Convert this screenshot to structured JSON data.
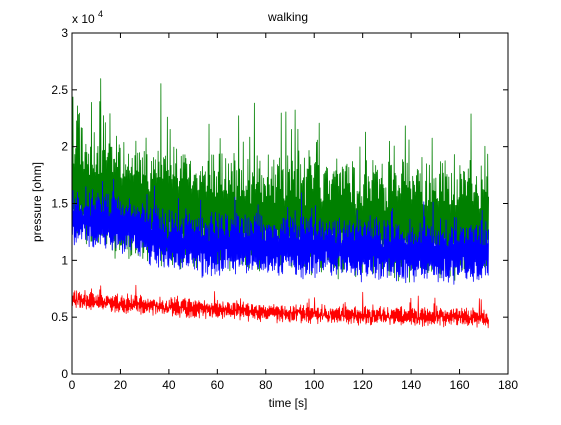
{
  "chart_data": {
    "type": "line",
    "title": "walking",
    "xlabel": "time [s]",
    "ylabel": "pressure [ohm]",
    "y_exponent_label": "x 10",
    "y_exponent_power": "4",
    "xlim": [
      0,
      180
    ],
    "ylim": [
      0,
      3
    ],
    "y_scale_factor": 10000,
    "grid": false,
    "legend": "none",
    "x_ticks": [
      "0",
      "20",
      "40",
      "60",
      "80",
      "100",
      "120",
      "140",
      "160",
      "180"
    ],
    "y_ticks": [
      "0",
      "0.5",
      "1",
      "1.5",
      "2",
      "2.5",
      "3"
    ],
    "x_end": 172,
    "series": [
      {
        "color": "#008000",
        "x": [
          0,
          10,
          20,
          30,
          40,
          50,
          60,
          70,
          80,
          90,
          100,
          110,
          120,
          130,
          140,
          150,
          160,
          172
        ],
        "y": [
          1.6,
          1.55,
          1.5,
          1.45,
          1.42,
          1.4,
          1.38,
          1.38,
          1.36,
          1.35,
          1.34,
          1.33,
          1.32,
          1.3,
          1.28,
          1.28,
          1.3,
          1.3
        ],
        "peak_max": 2.66
      },
      {
        "color": "#0000ff",
        "x": [
          0,
          10,
          20,
          30,
          40,
          50,
          60,
          70,
          80,
          90,
          100,
          110,
          120,
          130,
          140,
          150,
          160,
          172
        ],
        "y": [
          1.35,
          1.32,
          1.3,
          1.22,
          1.15,
          1.12,
          1.12,
          1.12,
          1.1,
          1.1,
          1.1,
          1.1,
          1.08,
          1.06,
          1.05,
          1.05,
          1.05,
          1.05
        ]
      },
      {
        "color": "#ff0000",
        "x": [
          0,
          10,
          20,
          30,
          40,
          50,
          60,
          70,
          80,
          90,
          100,
          110,
          120,
          130,
          140,
          150,
          160,
          172
        ],
        "y": [
          0.65,
          0.63,
          0.61,
          0.6,
          0.58,
          0.57,
          0.56,
          0.55,
          0.54,
          0.53,
          0.52,
          0.52,
          0.51,
          0.5,
          0.5,
          0.5,
          0.5,
          0.48
        ]
      }
    ]
  }
}
